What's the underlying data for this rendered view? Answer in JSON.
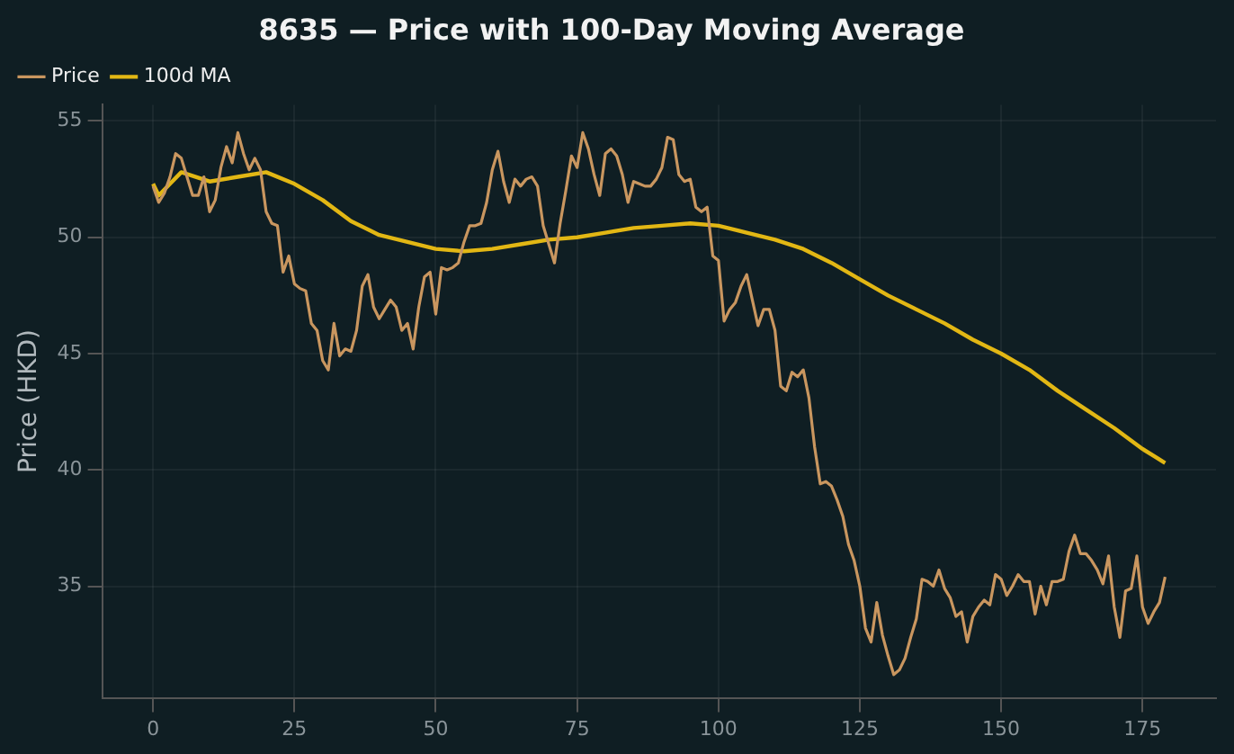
{
  "chart_data": {
    "type": "line",
    "title": "8635 — Price with 100-Day Moving Average",
    "ylabel": "Price (HKD)",
    "xlim": [
      -9,
      188
    ],
    "xticks": [
      0,
      25,
      50,
      75,
      100,
      125,
      150,
      175
    ],
    "ylim": [
      30.2,
      55.7
    ],
    "yticks": [
      35,
      40,
      45,
      50,
      55
    ],
    "grid": true,
    "legend": "top left",
    "marker": "none",
    "line_style": "solid",
    "x": [
      0,
      1,
      2,
      3,
      4,
      5,
      6,
      7,
      8,
      9,
      10,
      11,
      12,
      13,
      14,
      15,
      16,
      17,
      18,
      19,
      20,
      21,
      22,
      23,
      24,
      25,
      26,
      27,
      28,
      29,
      30,
      31,
      32,
      33,
      34,
      35,
      36,
      37,
      38,
      39,
      40,
      41,
      42,
      43,
      44,
      45,
      46,
      47,
      48,
      49,
      50,
      51,
      52,
      53,
      54,
      55,
      56,
      57,
      58,
      59,
      60,
      61,
      62,
      63,
      64,
      65,
      66,
      67,
      68,
      69,
      70,
      71,
      72,
      73,
      74,
      75,
      76,
      77,
      78,
      79,
      80,
      81,
      82,
      83,
      84,
      85,
      86,
      87,
      88,
      89,
      90,
      91,
      92,
      93,
      94,
      95,
      96,
      97,
      98,
      99,
      100,
      101,
      102,
      103,
      104,
      105,
      106,
      107,
      108,
      109,
      110,
      111,
      112,
      113,
      114,
      115,
      116,
      117,
      118,
      119,
      120,
      121,
      122,
      123,
      124,
      125,
      126,
      127,
      128,
      129,
      130,
      131,
      132,
      133,
      134,
      135,
      136,
      137,
      138,
      139,
      140,
      141,
      142,
      143,
      144,
      145,
      146,
      147,
      148,
      149,
      150,
      151,
      152,
      153,
      154,
      155,
      156,
      157,
      158,
      159,
      160,
      161,
      162,
      163,
      164,
      165,
      166,
      167,
      168,
      169,
      170,
      171,
      172,
      173,
      174,
      175,
      176,
      177,
      178,
      179
    ],
    "series": [
      {
        "name": "Price",
        "color": "#c9965f",
        "values": [
          52.2,
          51.5,
          51.9,
          52.6,
          53.6,
          53.4,
          52.6,
          51.8,
          51.8,
          52.6,
          51.1,
          51.6,
          53.0,
          53.9,
          53.2,
          54.5,
          53.6,
          52.9,
          53.4,
          52.9,
          51.1,
          50.6,
          50.5,
          48.5,
          49.2,
          48.0,
          47.8,
          47.7,
          46.3,
          46.0,
          44.7,
          44.3,
          46.3,
          44.9,
          45.2,
          45.1,
          46.0,
          47.9,
          48.4,
          47.0,
          46.5,
          46.9,
          47.3,
          47.0,
          46.0,
          46.3,
          45.2,
          47.0,
          48.3,
          48.5,
          46.7,
          48.7,
          48.6,
          48.7,
          48.9,
          49.8,
          50.5,
          50.5,
          50.6,
          51.5,
          52.9,
          53.7,
          52.4,
          51.5,
          52.5,
          52.2,
          52.5,
          52.6,
          52.2,
          50.5,
          49.7,
          48.9,
          50.6,
          52.0,
          53.5,
          53.0,
          54.5,
          53.8,
          52.7,
          51.8,
          53.6,
          53.8,
          53.5,
          52.7,
          51.5,
          52.4,
          52.3,
          52.2,
          52.2,
          52.5,
          53.0,
          54.3,
          54.2,
          52.7,
          52.4,
          52.5,
          51.3,
          51.1,
          51.3,
          49.2,
          49.0,
          46.4,
          46.9,
          47.2,
          47.9,
          48.4,
          47.3,
          46.2,
          46.9,
          46.9,
          46.0,
          43.6,
          43.4,
          44.2,
          44.0,
          44.3,
          43.1,
          41.0,
          39.4,
          39.5,
          39.3,
          38.7,
          38.0,
          36.8,
          36.1,
          35.0,
          33.2,
          32.6,
          34.3,
          32.9,
          32.0,
          31.2,
          31.4,
          31.9,
          32.8,
          33.6,
          35.3,
          35.2,
          35.0,
          35.7,
          34.9,
          34.5,
          33.7,
          33.9,
          32.6,
          33.7,
          34.1,
          34.4,
          34.2,
          35.5,
          35.3,
          34.6,
          35.0,
          35.5,
          35.2,
          35.2,
          33.8,
          35.0,
          34.2,
          35.2,
          35.2,
          35.3,
          36.5,
          37.2,
          36.4,
          36.4,
          36.1,
          35.7,
          35.1,
          36.3,
          34.1,
          32.8,
          34.8,
          34.9,
          36.3,
          34.1,
          33.4,
          33.9,
          34.3,
          35.4
        ]
      },
      {
        "name": "100d MA",
        "color": "#e2b714",
        "x": [
          0,
          1,
          3,
          5,
          10,
          15,
          20,
          25,
          30,
          35,
          40,
          45,
          50,
          55,
          60,
          65,
          70,
          75,
          80,
          85,
          90,
          95,
          100,
          105,
          110,
          115,
          120,
          125,
          130,
          135,
          140,
          145,
          150,
          155,
          160,
          165,
          170,
          175,
          179
        ],
        "values": [
          52.3,
          51.8,
          52.3,
          52.8,
          52.4,
          52.6,
          52.8,
          52.3,
          51.6,
          50.7,
          50.1,
          49.8,
          49.5,
          49.4,
          49.5,
          49.7,
          49.9,
          50.0,
          50.2,
          50.4,
          50.5,
          50.6,
          50.5,
          50.2,
          49.9,
          49.5,
          48.9,
          48.2,
          47.5,
          46.9,
          46.3,
          45.6,
          45.0,
          44.3,
          43.4,
          42.6,
          41.8,
          40.9,
          40.3
        ]
      }
    ]
  }
}
